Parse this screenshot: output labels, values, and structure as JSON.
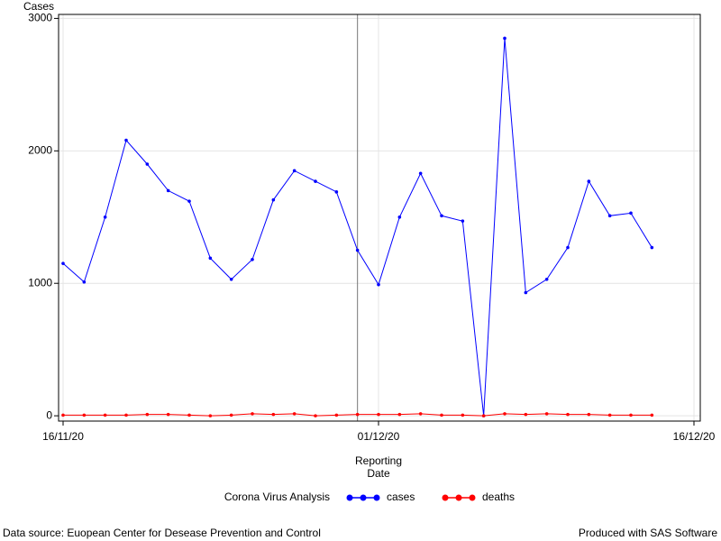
{
  "chart_data": {
    "type": "line",
    "y_label": "Cases",
    "x_label": "Reporting Date",
    "legend_title": "Corona Virus Analysis",
    "legend_position": "bottom",
    "footnote_left": "Data source: Euopean Center for Desease Prevention and Control",
    "footnote_right": "Produced with SAS Software",
    "x": [
      "16/11/20",
      "17/11/20",
      "18/11/20",
      "19/11/20",
      "20/11/20",
      "21/11/20",
      "22/11/20",
      "23/11/20",
      "24/11/20",
      "25/11/20",
      "26/11/20",
      "27/11/20",
      "28/11/20",
      "29/11/20",
      "30/11/20",
      "01/12/20",
      "02/12/20",
      "03/12/20",
      "04/12/20",
      "05/12/20",
      "06/12/20",
      "07/12/20",
      "08/12/20",
      "09/12/20",
      "10/12/20",
      "11/12/20",
      "12/12/20",
      "13/12/20",
      "14/12/20"
    ],
    "series": [
      {
        "name": "cases",
        "color": "#0000ff",
        "values": [
          1150,
          1010,
          1500,
          2080,
          1900,
          1700,
          1620,
          1190,
          1030,
          1180,
          1630,
          1850,
          1770,
          1690,
          1250,
          990,
          1500,
          1830,
          1510,
          1470,
          0,
          2850,
          930,
          1030,
          1270,
          1770,
          1510,
          1530,
          1270
        ]
      },
      {
        "name": "deaths",
        "color": "#ff0000",
        "values": [
          5,
          5,
          5,
          5,
          10,
          10,
          5,
          0,
          5,
          15,
          10,
          15,
          0,
          5,
          10,
          10,
          10,
          15,
          5,
          5,
          0,
          15,
          10,
          15,
          10,
          10,
          5,
          5,
          5
        ]
      }
    ],
    "xlim": [
      "16/11/20",
      "16/12/20"
    ],
    "xticks": [
      "16/11/20",
      "01/12/20",
      "16/12/20"
    ],
    "ylim": [
      -40,
      3030
    ],
    "yticks": [
      0,
      1000,
      2000,
      3000
    ],
    "grid": true,
    "reference_line": "30/11/20"
  }
}
